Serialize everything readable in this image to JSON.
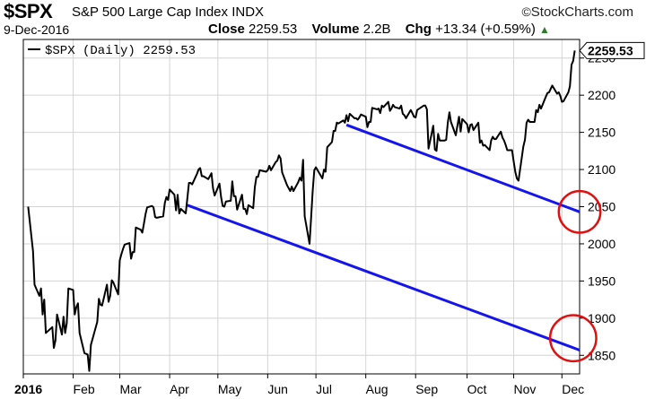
{
  "header": {
    "ticker": "$SPX",
    "name": "S&P 500 Large Cap Index",
    "exchange": "INDX",
    "brand": "StockCharts.com",
    "date": "9-Dec-2016",
    "close_label": "Close",
    "close_value": "2259.53",
    "volume_label": "Volume",
    "volume_value": "2.2B",
    "chg_label": "Chg",
    "chg_value": "+13.34 (+0.59%)",
    "chg_arrow": "▲",
    "up_color": "#2a7d2a"
  },
  "chart_data": {
    "type": "line",
    "legend_label": "$SPX (Daily) 2259.53",
    "legend_position": "top-left",
    "last_value": "2259.53",
    "ylim": [
      1825,
      2275
    ],
    "yticks": [
      1850,
      1900,
      1950,
      2000,
      2050,
      2100,
      2150,
      2200,
      2250
    ],
    "xlim": [
      "2016-01-01",
      "2016-12-12"
    ],
    "xticks": [
      {
        "label": "2016",
        "date": "2016-01-01",
        "bold": true
      },
      {
        "label": "Feb",
        "date": "2016-02-01"
      },
      {
        "label": "Mar",
        "date": "2016-03-01"
      },
      {
        "label": "Apr",
        "date": "2016-04-01"
      },
      {
        "label": "May",
        "date": "2016-05-01"
      },
      {
        "label": "Jun",
        "date": "2016-06-01"
      },
      {
        "label": "Jul",
        "date": "2016-07-01"
      },
      {
        "label": "Aug",
        "date": "2016-08-01"
      },
      {
        "label": "Sep",
        "date": "2016-09-01"
      },
      {
        "label": "Oct",
        "date": "2016-10-03"
      },
      {
        "label": "Nov",
        "date": "2016-11-01"
      },
      {
        "label": "Dec",
        "date": "2016-12-01"
      }
    ],
    "grid": true,
    "line_color": "#000000",
    "trend_color": "#1414ee",
    "circle_color": "#e01010",
    "series": [
      {
        "values": [
          [
            "2016-01-04",
            2050
          ],
          [
            "2016-01-05",
            2030
          ],
          [
            "2016-01-06",
            2010
          ],
          [
            "2016-01-07",
            1990
          ],
          [
            "2016-01-08",
            1945
          ],
          [
            "2016-01-11",
            1930
          ],
          [
            "2016-01-12",
            1940
          ],
          [
            "2016-01-13",
            1905
          ],
          [
            "2016-01-14",
            1925
          ],
          [
            "2016-01-15",
            1880
          ],
          [
            "2016-01-19",
            1888
          ],
          [
            "2016-01-20",
            1860
          ],
          [
            "2016-01-21",
            1870
          ],
          [
            "2016-01-22",
            1905
          ],
          [
            "2016-01-25",
            1878
          ],
          [
            "2016-01-26",
            1902
          ],
          [
            "2016-01-27",
            1880
          ],
          [
            "2016-01-28",
            1893
          ],
          [
            "2016-01-29",
            1940
          ],
          [
            "2016-02-01",
            1938
          ],
          [
            "2016-02-02",
            1905
          ],
          [
            "2016-02-03",
            1915
          ],
          [
            "2016-02-04",
            1920
          ],
          [
            "2016-02-05",
            1880
          ],
          [
            "2016-02-08",
            1853
          ],
          [
            "2016-02-09",
            1852
          ],
          [
            "2016-02-10",
            1851
          ],
          [
            "2016-02-11",
            1829
          ],
          [
            "2016-02-12",
            1864
          ],
          [
            "2016-02-16",
            1895
          ],
          [
            "2016-02-17",
            1926
          ],
          [
            "2016-02-18",
            1918
          ],
          [
            "2016-02-19",
            1917
          ],
          [
            "2016-02-22",
            1945
          ],
          [
            "2016-02-23",
            1922
          ],
          [
            "2016-02-24",
            1930
          ],
          [
            "2016-02-25",
            1951
          ],
          [
            "2016-02-26",
            1948
          ],
          [
            "2016-02-29",
            1932
          ],
          [
            "2016-03-01",
            1978
          ],
          [
            "2016-03-02",
            1986
          ],
          [
            "2016-03-03",
            1993
          ],
          [
            "2016-03-04",
            1999
          ],
          [
            "2016-03-07",
            2001
          ],
          [
            "2016-03-08",
            1980
          ],
          [
            "2016-03-09",
            1989
          ],
          [
            "2016-03-10",
            1989
          ],
          [
            "2016-03-11",
            2022
          ],
          [
            "2016-03-14",
            2019
          ],
          [
            "2016-03-15",
            2015
          ],
          [
            "2016-03-16",
            2027
          ],
          [
            "2016-03-17",
            2040
          ],
          [
            "2016-03-18",
            2049
          ],
          [
            "2016-03-21",
            2051
          ],
          [
            "2016-03-22",
            2049
          ],
          [
            "2016-03-23",
            2036
          ],
          [
            "2016-03-24",
            2035
          ],
          [
            "2016-03-28",
            2037
          ],
          [
            "2016-03-29",
            2055
          ],
          [
            "2016-03-30",
            2063
          ],
          [
            "2016-03-31",
            2059
          ],
          [
            "2016-04-01",
            2073
          ],
          [
            "2016-04-04",
            2066
          ],
          [
            "2016-04-05",
            2045
          ],
          [
            "2016-04-06",
            2066
          ],
          [
            "2016-04-07",
            2041
          ],
          [
            "2016-04-08",
            2047
          ],
          [
            "2016-04-11",
            2041
          ],
          [
            "2016-04-12",
            2061
          ],
          [
            "2016-04-13",
            2082
          ],
          [
            "2016-04-14",
            2082
          ],
          [
            "2016-04-15",
            2080
          ],
          [
            "2016-04-18",
            2094
          ],
          [
            "2016-04-19",
            2100
          ],
          [
            "2016-04-20",
            2102
          ],
          [
            "2016-04-21",
            2091
          ],
          [
            "2016-04-22",
            2091
          ],
          [
            "2016-04-25",
            2087
          ],
          [
            "2016-04-26",
            2091
          ],
          [
            "2016-04-27",
            2095
          ],
          [
            "2016-04-28",
            2075
          ],
          [
            "2016-04-29",
            2065
          ],
          [
            "2016-05-02",
            2081
          ],
          [
            "2016-05-03",
            2063
          ],
          [
            "2016-05-04",
            2051
          ],
          [
            "2016-05-05",
            2050
          ],
          [
            "2016-05-06",
            2057
          ],
          [
            "2016-05-09",
            2058
          ],
          [
            "2016-05-10",
            2084
          ],
          [
            "2016-05-11",
            2064
          ],
          [
            "2016-05-12",
            2064
          ],
          [
            "2016-05-13",
            2046
          ],
          [
            "2016-05-16",
            2066
          ],
          [
            "2016-05-17",
            2047
          ],
          [
            "2016-05-18",
            2047
          ],
          [
            "2016-05-19",
            2040
          ],
          [
            "2016-05-20",
            2052
          ],
          [
            "2016-05-23",
            2048
          ],
          [
            "2016-05-24",
            2076
          ],
          [
            "2016-05-25",
            2090
          ],
          [
            "2016-05-26",
            2090
          ],
          [
            "2016-05-27",
            2099
          ],
          [
            "2016-05-31",
            2097
          ],
          [
            "2016-06-01",
            2099
          ],
          [
            "2016-06-02",
            2105
          ],
          [
            "2016-06-03",
            2099
          ],
          [
            "2016-06-06",
            2110
          ],
          [
            "2016-06-07",
            2112
          ],
          [
            "2016-06-08",
            2119
          ],
          [
            "2016-06-09",
            2115
          ],
          [
            "2016-06-10",
            2096
          ],
          [
            "2016-06-13",
            2079
          ],
          [
            "2016-06-14",
            2075
          ],
          [
            "2016-06-15",
            2071
          ],
          [
            "2016-06-16",
            2077
          ],
          [
            "2016-06-17",
            2071
          ],
          [
            "2016-06-20",
            2083
          ],
          [
            "2016-06-21",
            2089
          ],
          [
            "2016-06-22",
            2085
          ],
          [
            "2016-06-23",
            2113
          ],
          [
            "2016-06-24",
            2037
          ],
          [
            "2016-06-27",
            2000
          ],
          [
            "2016-06-28",
            2036
          ],
          [
            "2016-06-29",
            2071
          ],
          [
            "2016-06-30",
            2099
          ],
          [
            "2016-07-01",
            2103
          ],
          [
            "2016-07-05",
            2088
          ],
          [
            "2016-07-06",
            2100
          ],
          [
            "2016-07-07",
            2097
          ],
          [
            "2016-07-08",
            2130
          ],
          [
            "2016-07-11",
            2137
          ],
          [
            "2016-07-12",
            2152
          ],
          [
            "2016-07-13",
            2152
          ],
          [
            "2016-07-14",
            2163
          ],
          [
            "2016-07-15",
            2162
          ],
          [
            "2016-07-18",
            2166
          ],
          [
            "2016-07-19",
            2163
          ],
          [
            "2016-07-20",
            2173
          ],
          [
            "2016-07-21",
            2165
          ],
          [
            "2016-07-22",
            2175
          ],
          [
            "2016-07-25",
            2169
          ],
          [
            "2016-07-26",
            2169
          ],
          [
            "2016-07-27",
            2167
          ],
          [
            "2016-07-28",
            2170
          ],
          [
            "2016-07-29",
            2174
          ],
          [
            "2016-08-01",
            2171
          ],
          [
            "2016-08-02",
            2157
          ],
          [
            "2016-08-03",
            2164
          ],
          [
            "2016-08-04",
            2164
          ],
          [
            "2016-08-05",
            2183
          ],
          [
            "2016-08-08",
            2181
          ],
          [
            "2016-08-09",
            2182
          ],
          [
            "2016-08-10",
            2176
          ],
          [
            "2016-08-11",
            2186
          ],
          [
            "2016-08-12",
            2184
          ],
          [
            "2016-08-15",
            2191
          ],
          [
            "2016-08-16",
            2179
          ],
          [
            "2016-08-17",
            2182
          ],
          [
            "2016-08-18",
            2187
          ],
          [
            "2016-08-19",
            2184
          ],
          [
            "2016-08-22",
            2182
          ],
          [
            "2016-08-23",
            2186
          ],
          [
            "2016-08-24",
            2175
          ],
          [
            "2016-08-25",
            2173
          ],
          [
            "2016-08-26",
            2169
          ],
          [
            "2016-08-29",
            2180
          ],
          [
            "2016-08-30",
            2176
          ],
          [
            "2016-08-31",
            2171
          ],
          [
            "2016-09-01",
            2170
          ],
          [
            "2016-09-02",
            2180
          ],
          [
            "2016-09-06",
            2186
          ],
          [
            "2016-09-07",
            2186
          ],
          [
            "2016-09-08",
            2181
          ],
          [
            "2016-09-09",
            2128
          ],
          [
            "2016-09-12",
            2159
          ],
          [
            "2016-09-13",
            2127
          ],
          [
            "2016-09-14",
            2125
          ],
          [
            "2016-09-15",
            2148
          ],
          [
            "2016-09-16",
            2139
          ],
          [
            "2016-09-19",
            2139
          ],
          [
            "2016-09-20",
            2140
          ],
          [
            "2016-09-21",
            2163
          ],
          [
            "2016-09-22",
            2177
          ],
          [
            "2016-09-23",
            2164
          ],
          [
            "2016-09-26",
            2146
          ],
          [
            "2016-09-27",
            2159
          ],
          [
            "2016-09-28",
            2171
          ],
          [
            "2016-09-29",
            2151
          ],
          [
            "2016-09-30",
            2168
          ],
          [
            "2016-10-03",
            2161
          ],
          [
            "2016-10-04",
            2150
          ],
          [
            "2016-10-05",
            2160
          ],
          [
            "2016-10-06",
            2161
          ],
          [
            "2016-10-07",
            2153
          ],
          [
            "2016-10-10",
            2163
          ],
          [
            "2016-10-11",
            2136
          ],
          [
            "2016-10-12",
            2139
          ],
          [
            "2016-10-13",
            2132
          ],
          [
            "2016-10-14",
            2133
          ],
          [
            "2016-10-17",
            2126
          ],
          [
            "2016-10-18",
            2139
          ],
          [
            "2016-10-19",
            2144
          ],
          [
            "2016-10-20",
            2141
          ],
          [
            "2016-10-21",
            2141
          ],
          [
            "2016-10-24",
            2151
          ],
          [
            "2016-10-25",
            2143
          ],
          [
            "2016-10-26",
            2139
          ],
          [
            "2016-10-27",
            2133
          ],
          [
            "2016-10-28",
            2126
          ],
          [
            "2016-10-31",
            2126
          ],
          [
            "2016-11-01",
            2111
          ],
          [
            "2016-11-02",
            2097
          ],
          [
            "2016-11-03",
            2088
          ],
          [
            "2016-11-04",
            2085
          ],
          [
            "2016-11-07",
            2131
          ],
          [
            "2016-11-08",
            2140
          ],
          [
            "2016-11-09",
            2163
          ],
          [
            "2016-11-10",
            2167
          ],
          [
            "2016-11-11",
            2164
          ],
          [
            "2016-11-14",
            2164
          ],
          [
            "2016-11-15",
            2180
          ],
          [
            "2016-11-16",
            2177
          ],
          [
            "2016-11-17",
            2187
          ],
          [
            "2016-11-18",
            2182
          ],
          [
            "2016-11-21",
            2198
          ],
          [
            "2016-11-22",
            2203
          ],
          [
            "2016-11-23",
            2204
          ],
          [
            "2016-11-25",
            2213
          ],
          [
            "2016-11-28",
            2202
          ],
          [
            "2016-11-29",
            2204
          ],
          [
            "2016-11-30",
            2199
          ],
          [
            "2016-12-01",
            2191
          ],
          [
            "2016-12-02",
            2192
          ],
          [
            "2016-12-05",
            2204
          ],
          [
            "2016-12-06",
            2212
          ],
          [
            "2016-12-07",
            2241
          ],
          [
            "2016-12-08",
            2246
          ],
          [
            "2016-12-09",
            2260
          ]
        ]
      }
    ],
    "trendlines": [
      {
        "from": [
          "2016-04-12",
          2052
        ],
        "to": [
          "2016-12-12",
          1857
        ]
      },
      {
        "from": [
          "2016-07-20",
          2160
        ],
        "to": [
          "2016-12-12",
          2043
        ]
      }
    ],
    "circles": [
      {
        "center": [
          "2016-12-12",
          2043
        ],
        "r_value": 28
      },
      {
        "center": [
          "2016-12-08",
          1873
        ],
        "r_value": 31
      }
    ]
  }
}
